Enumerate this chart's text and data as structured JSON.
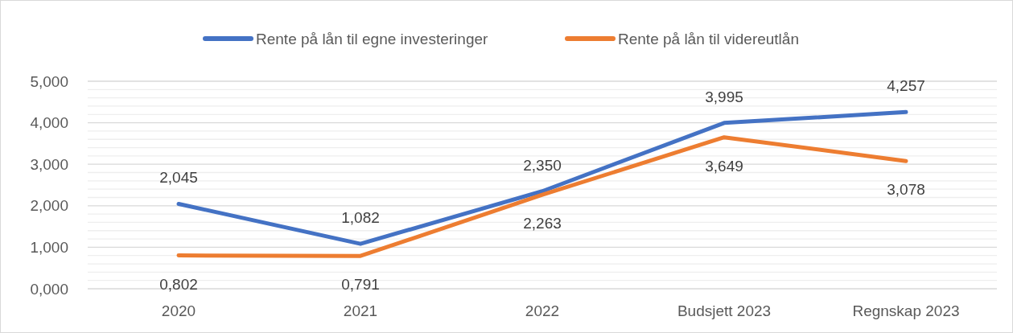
{
  "chart_data": {
    "type": "line",
    "categories": [
      "2020",
      "2021",
      "2022",
      "Budsjett 2023",
      "Regnskap 2023"
    ],
    "series": [
      {
        "name": "Rente på lån til egne investeringer",
        "color": "#4472c4",
        "values": [
          2.045,
          1.082,
          2.35,
          3.995,
          4.257
        ],
        "value_labels": [
          "2,045",
          "1,082",
          "2,350",
          "3,995",
          "4,257"
        ]
      },
      {
        "name": "Rente på lån til videreutlån",
        "color": "#ed7d31",
        "values": [
          0.802,
          0.791,
          2.263,
          3.649,
          3.078
        ],
        "value_labels": [
          "0,802",
          "0,791",
          "2,263",
          "3,649",
          "3,078"
        ]
      }
    ],
    "ylim": [
      0,
      5
    ],
    "yticks": [
      {
        "value": 0,
        "label": "0,000"
      },
      {
        "value": 0.2,
        "label": null
      },
      {
        "value": 0.4,
        "label": null
      },
      {
        "value": 0.6,
        "label": null
      },
      {
        "value": 0.8,
        "label": null
      },
      {
        "value": 1,
        "label": "1,000"
      },
      {
        "value": 1.2,
        "label": null
      },
      {
        "value": 1.4,
        "label": null
      },
      {
        "value": 1.6,
        "label": null
      },
      {
        "value": 1.8,
        "label": null
      },
      {
        "value": 2,
        "label": "2,000"
      },
      {
        "value": 2.2,
        "label": null
      },
      {
        "value": 2.4,
        "label": null
      },
      {
        "value": 2.6,
        "label": null
      },
      {
        "value": 2.8,
        "label": null
      },
      {
        "value": 3,
        "label": "3,000"
      },
      {
        "value": 3.2,
        "label": null
      },
      {
        "value": 3.4,
        "label": null
      },
      {
        "value": 3.6,
        "label": null
      },
      {
        "value": 3.8,
        "label": null
      },
      {
        "value": 4,
        "label": "4,000"
      },
      {
        "value": 4.2,
        "label": null
      },
      {
        "value": 4.4,
        "label": null
      },
      {
        "value": 4.6,
        "label": null
      },
      {
        "value": 4.8,
        "label": null
      },
      {
        "value": 5,
        "label": "5,000"
      }
    ],
    "grid": "y",
    "legend": "top",
    "marker": "none",
    "line_style": "solid"
  }
}
